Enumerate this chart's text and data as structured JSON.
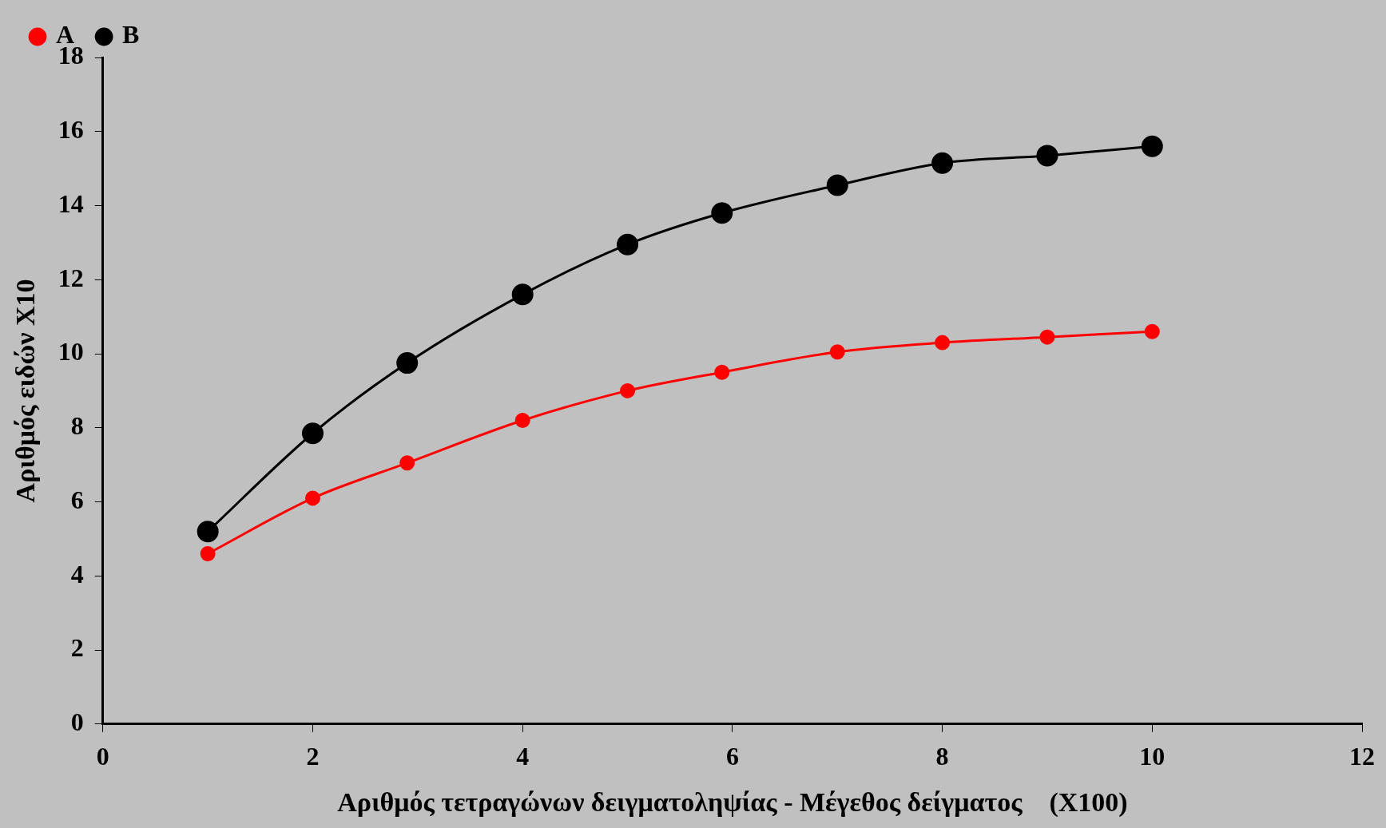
{
  "chart_data": {
    "type": "line",
    "xlabel": "Αριθμός τετραγώνων δειγματοληψίας - Μέγεθος δείγματος    (X100)",
    "ylabel": "Αριθμός ειδών X10",
    "xlim": [
      0,
      12
    ],
    "xticks": [
      0,
      2,
      4,
      6,
      8,
      10,
      12
    ],
    "ylim": [
      0,
      18
    ],
    "yticks": [
      0,
      2,
      4,
      6,
      8,
      10,
      12,
      14,
      16,
      18
    ],
    "grid": false,
    "legend": "top left",
    "marker": "circle",
    "line_style": "solid",
    "series": [
      {
        "name": "A",
        "color": "#ff0000",
        "x": [
          1,
          2,
          2.9,
          4,
          5,
          5.9,
          7,
          8,
          9,
          10
        ],
        "values": [
          4.6,
          6.1,
          7.05,
          8.2,
          9.0,
          9.5,
          10.05,
          10.3,
          10.45,
          10.6
        ]
      },
      {
        "name": "B",
        "color": "#000000",
        "x": [
          1,
          2,
          2.9,
          4,
          5,
          5.9,
          7,
          8,
          9,
          10
        ],
        "values": [
          5.2,
          7.85,
          9.75,
          11.6,
          12.95,
          13.8,
          14.55,
          15.15,
          15.35,
          15.6
        ]
      }
    ]
  }
}
